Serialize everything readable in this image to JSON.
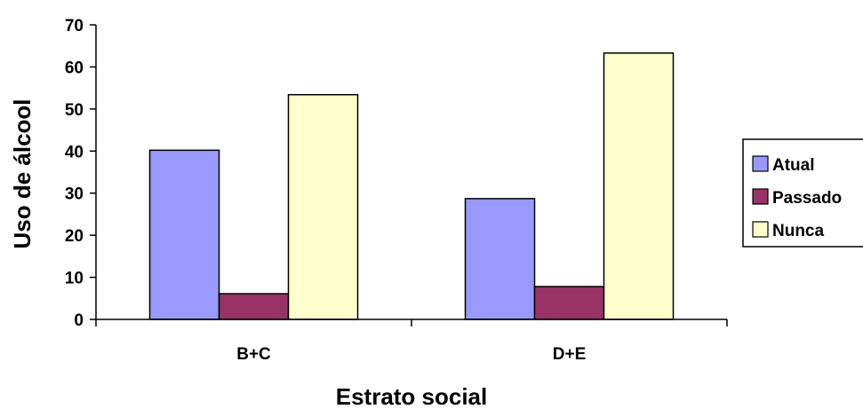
{
  "chart_data": {
    "type": "bar",
    "categories": [
      "B+C",
      "D+E"
    ],
    "series": [
      {
        "name": "Atual",
        "values": [
          40.2,
          28.7
        ],
        "color": "#9999ff"
      },
      {
        "name": "Passado",
        "values": [
          6.1,
          7.8
        ],
        "color": "#993366"
      },
      {
        "name": "Nunca",
        "values": [
          53.4,
          63.3
        ],
        "color": "#ffffcc"
      }
    ],
    "xlabel": "Estrato social",
    "ylabel": "Uso de álcool",
    "ylim": [
      0,
      70
    ],
    "yticks": [
      0,
      10,
      20,
      30,
      40,
      50,
      60,
      70
    ],
    "grid": false,
    "legend_position": "right"
  }
}
